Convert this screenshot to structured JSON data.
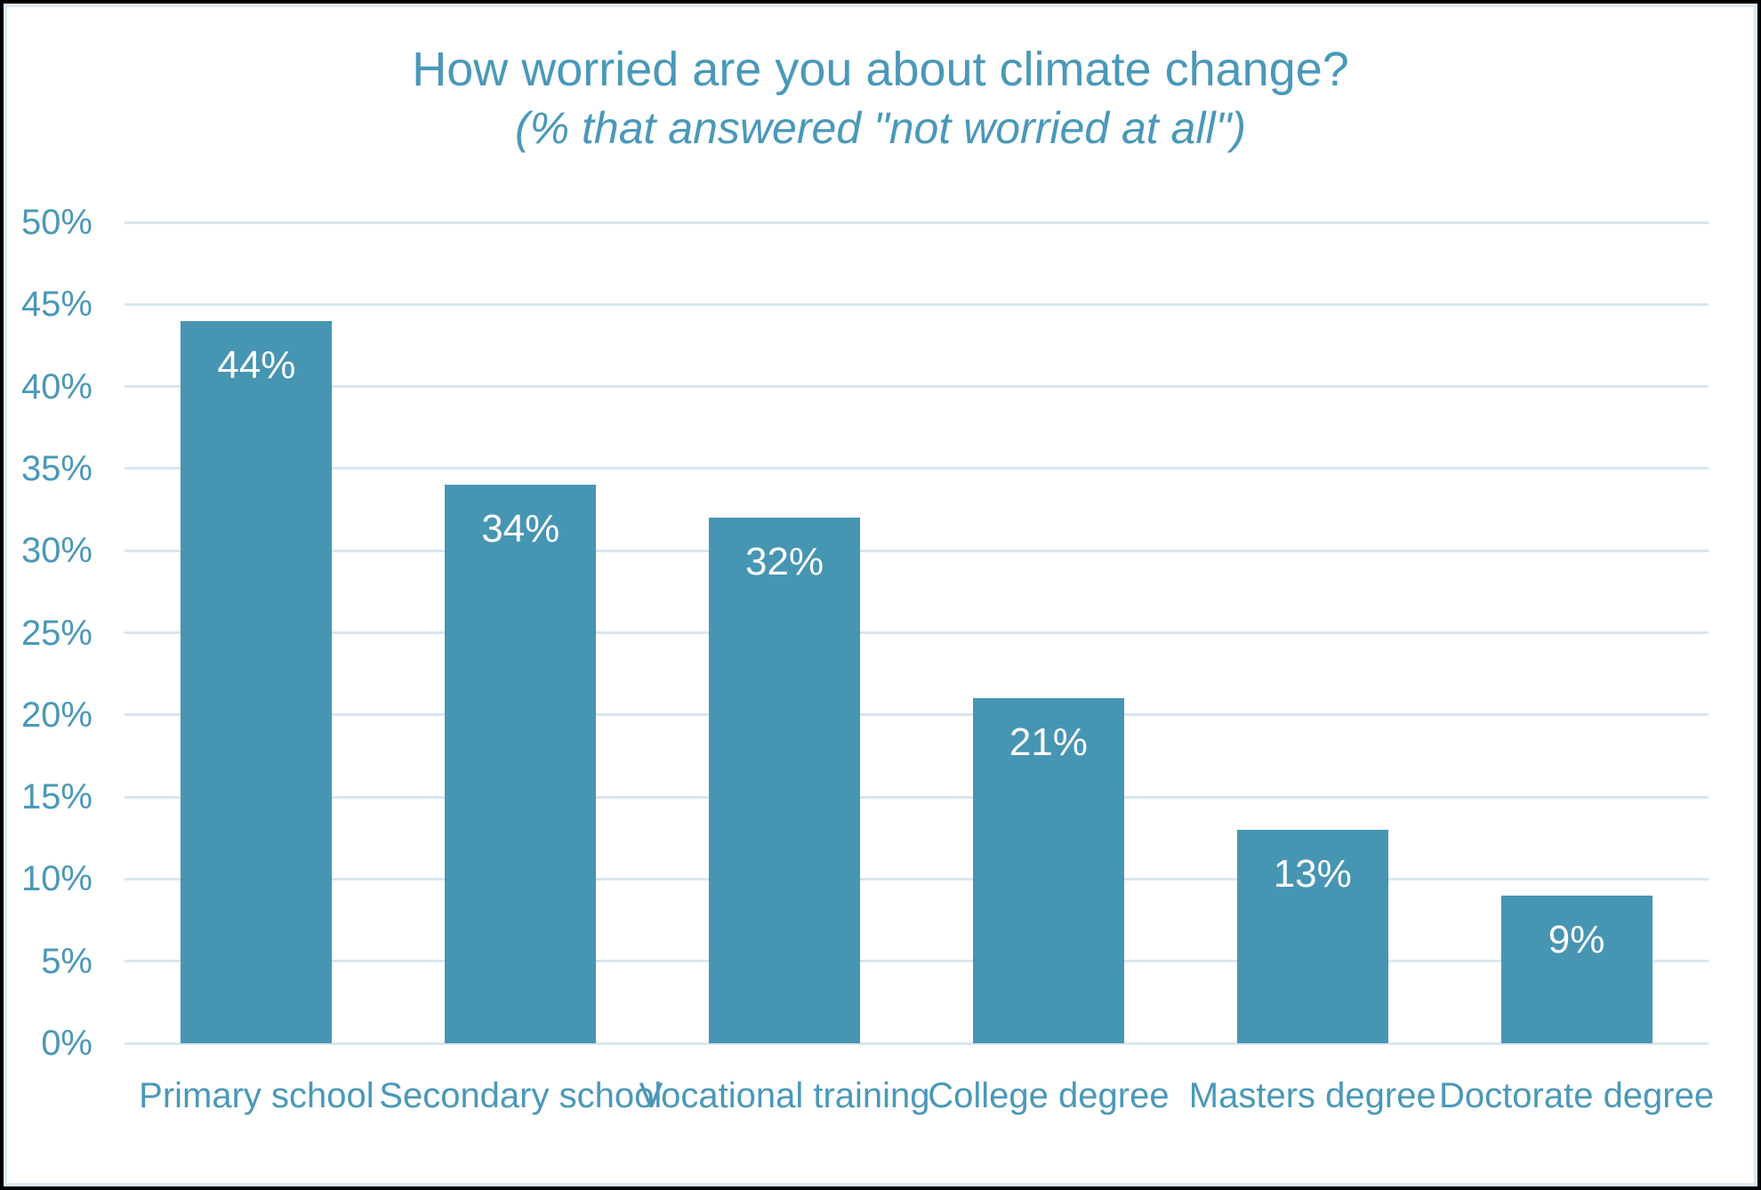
{
  "header": {
    "title": "How worried are you about climate change?",
    "subtitle": "(% that answered \"not worried at all\")"
  },
  "colors": {
    "bar_fill": "#4695b3",
    "text_accent": "#4a98b9",
    "gridline": "#d9e6ef",
    "data_label": "#ffffff",
    "inner_frame": "#d9e7f0",
    "outer_border": "#000000"
  },
  "chart_data": {
    "type": "bar",
    "title": "How worried are you about climate change?",
    "subtitle": "(% that answered \"not worried at all\")",
    "categories": [
      "Primary school",
      "Secondary school",
      "Vocational training",
      "College degree",
      "Masters degree",
      "Doctorate degree"
    ],
    "values": [
      44,
      34,
      32,
      21,
      13,
      9
    ],
    "value_labels": [
      "44%",
      "34%",
      "32%",
      "21%",
      "13%",
      "9%"
    ],
    "xlabel": "",
    "ylabel": "",
    "ylim": [
      0,
      50
    ],
    "ytick_step": 5,
    "yticks": [
      "0%",
      "5%",
      "10%",
      "15%",
      "20%",
      "25%",
      "30%",
      "35%",
      "40%",
      "45%",
      "50%"
    ],
    "grid": true,
    "legend": false,
    "data_label_position": "inside-end"
  }
}
